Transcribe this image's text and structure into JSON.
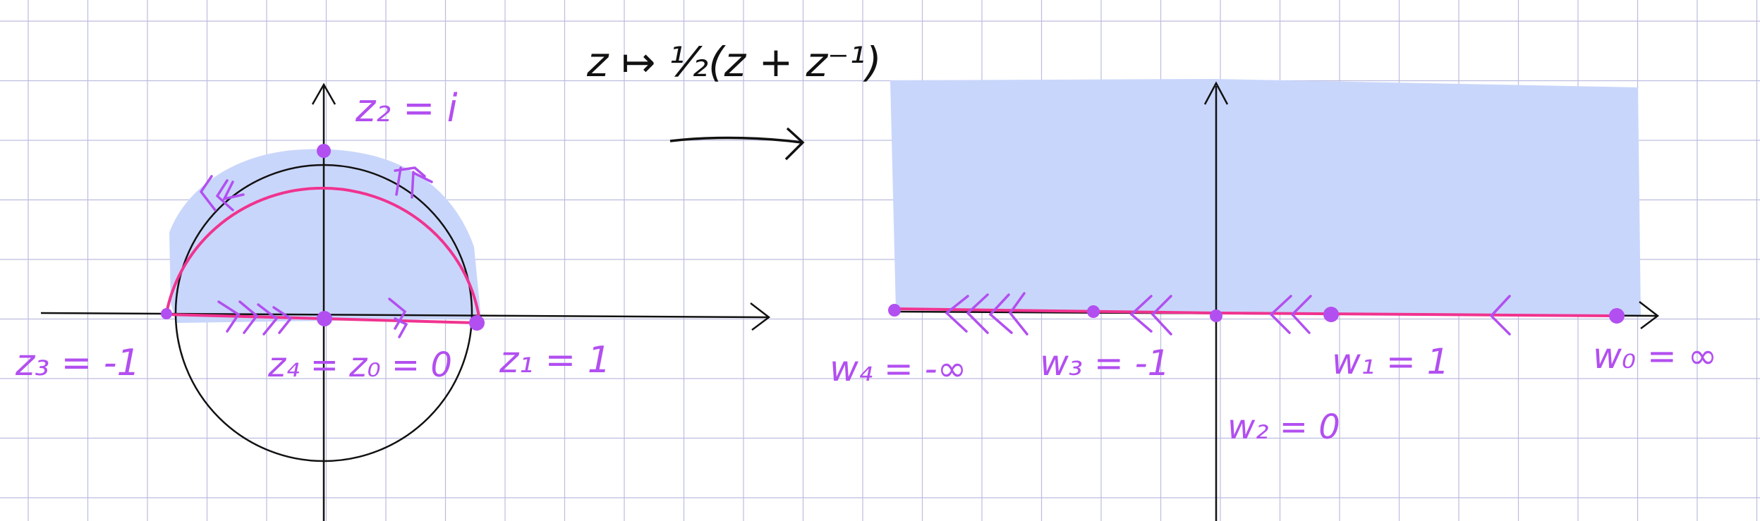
{
  "colors": {
    "grid": "#bcbcdf",
    "fill_region": "#c9d6fb",
    "curve": "#f0338f",
    "purple": "#b24ff0",
    "ink": "#111111"
  },
  "transform_label": "z ↦ ½(z + z⁻¹)",
  "left_panel": {
    "labels": {
      "z2": "z₂ = i",
      "z3": "z₃ = -1",
      "z4_z0": "z₄ = z₀ = 0",
      "z1": "z₁ = 1"
    }
  },
  "right_panel": {
    "labels": {
      "w4": "w₄ = -∞",
      "w3": "w₃ = -1",
      "w1": "w₁ = 1",
      "w0": "w₀ = ∞",
      "w2": "w₂ = 0"
    }
  }
}
